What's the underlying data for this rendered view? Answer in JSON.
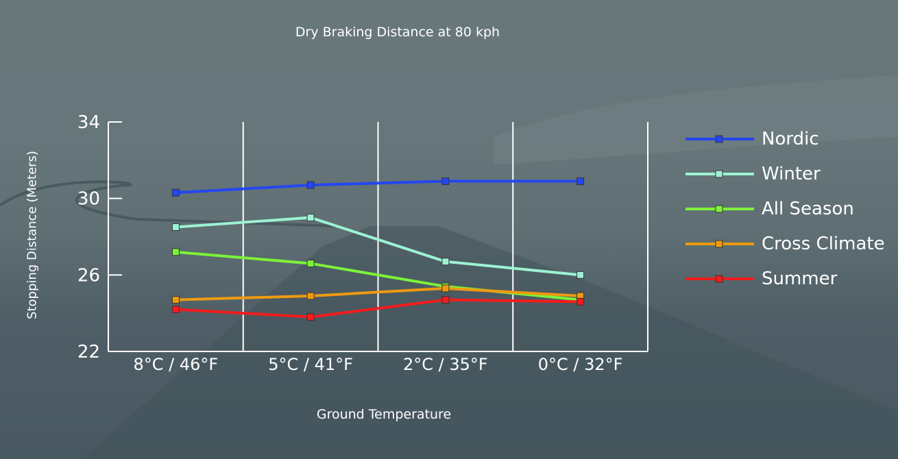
{
  "chart_data": {
    "type": "line",
    "title": "Dry Braking Distance at 80 kph",
    "xlabel": "Ground Temperature",
    "ylabel": "Stopping Distance (Meters)",
    "categories": [
      "8°C / 46°F",
      "5°C / 41°F",
      "2°C / 35°F",
      "0°C / 32°F"
    ],
    "yticks": [
      22,
      26,
      30,
      34
    ],
    "ylim": [
      22,
      34
    ],
    "grid": "vertical category separators",
    "legend_position": "right",
    "marker": "square",
    "series": [
      {
        "name": "Nordic",
        "color": "#2446f2",
        "values": [
          30.3,
          30.7,
          30.9,
          30.9
        ]
      },
      {
        "name": "Winter",
        "color": "#9cf2d2",
        "values": [
          28.5,
          29.0,
          26.7,
          26.0
        ]
      },
      {
        "name": "All Season",
        "color": "#7cf23a",
        "values": [
          27.2,
          26.6,
          25.4,
          24.7
        ]
      },
      {
        "name": "Cross Climate",
        "color": "#ee9a10",
        "values": [
          24.7,
          24.9,
          25.3,
          24.9
        ]
      },
      {
        "name": "Summer",
        "color": "#f41c1c",
        "values": [
          24.2,
          23.8,
          24.7,
          24.6
        ]
      }
    ]
  }
}
